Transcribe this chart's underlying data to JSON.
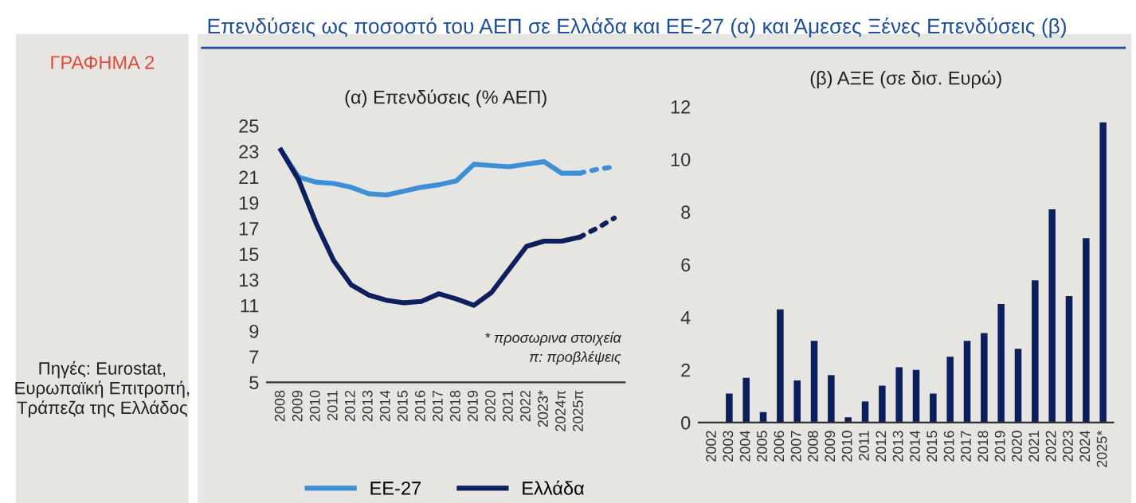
{
  "chart_data": [
    {
      "type": "line",
      "title": "(α) Επενδύσεις (% ΑΕΠ)",
      "annotations": [
        "Επενδύσεις ως ποσοστό του ΑΕΠ σε Ελλάδα και ΕΕ-27 (α) και Άμεσες Ξένες Επενδύσεις (β)",
        "ΓΡΑΦΗΜΑ 2",
        "Πηγές: Eurostat, Ευρωπαϊκή Επιτροπή, Τράπεζα της Ελλάδος",
        "* προσωρινα στοιχεία",
        "π: προβλέψεις"
      ],
      "categories": [
        "2008",
        "2009",
        "2010",
        "2011",
        "2012",
        "2013",
        "2014",
        "2015",
        "2016",
        "2017",
        "2018",
        "2019",
        "2020",
        "2021",
        "2022",
        "2023*",
        "2024π",
        "2025π",
        null,
        null
      ],
      "series": [
        {
          "name": "ΕΕ-27",
          "color": "#3d8fd6",
          "line_style": "solid",
          "values": [
            23.1,
            21.0,
            20.6,
            20.5,
            20.2,
            19.7,
            19.6,
            19.9,
            20.2,
            20.4,
            20.7,
            22.0,
            21.9,
            21.8,
            22.0,
            22.2,
            21.3,
            21.3,
            null,
            null
          ]
        },
        {
          "color": "#3d8fd6",
          "line_style": "dotted",
          "values": [
            null,
            null,
            null,
            null,
            null,
            null,
            null,
            null,
            null,
            null,
            null,
            null,
            null,
            null,
            null,
            null,
            null,
            21.3,
            21.6,
            21.8
          ]
        },
        {
          "name": "Ελλάδα",
          "color": "#0d1f5c",
          "line_style": "solid",
          "values": [
            23.1,
            20.8,
            17.4,
            14.5,
            12.6,
            11.8,
            11.4,
            11.2,
            11.3,
            11.9,
            11.5,
            11.0,
            12.0,
            13.8,
            15.6,
            16.0,
            16.0,
            16.3,
            null,
            null
          ]
        },
        {
          "color": "#0d1f5c",
          "line_style": "dotted",
          "values": [
            null,
            null,
            null,
            null,
            null,
            null,
            null,
            null,
            null,
            null,
            null,
            null,
            null,
            null,
            null,
            null,
            null,
            16.3,
            17.0,
            17.8
          ]
        }
      ],
      "ylim": [
        5,
        25
      ],
      "yticks": [
        5,
        7,
        9,
        11,
        13,
        15,
        17,
        19,
        21,
        23,
        25
      ],
      "grid": false,
      "legend": "bottom"
    },
    {
      "type": "bar",
      "title": "(β) ΑΞΕ (σε δισ. Ευρώ)",
      "categories": [
        "2002",
        "2003",
        "2004",
        "2005",
        "2006",
        "2007",
        "2008",
        "2009",
        "2010",
        "2011",
        "2012",
        "2013",
        "2014",
        "2015",
        "2016",
        "2017",
        "2018",
        "2019",
        "2020",
        "2021",
        "2022",
        "2023",
        "2024",
        "2025*"
      ],
      "values": [
        null,
        1.1,
        1.7,
        0.4,
        4.3,
        1.6,
        3.1,
        1.8,
        0.2,
        0.8,
        1.4,
        2.1,
        2.0,
        1.1,
        2.5,
        3.1,
        3.4,
        4.5,
        2.8,
        5.4,
        8.1,
        4.8,
        7.0,
        11.4
      ],
      "color": "#0c1f5b",
      "ylim": [
        0,
        12
      ],
      "yticks": [
        0,
        2,
        4,
        6,
        8,
        10,
        12
      ],
      "grid": false
    }
  ]
}
